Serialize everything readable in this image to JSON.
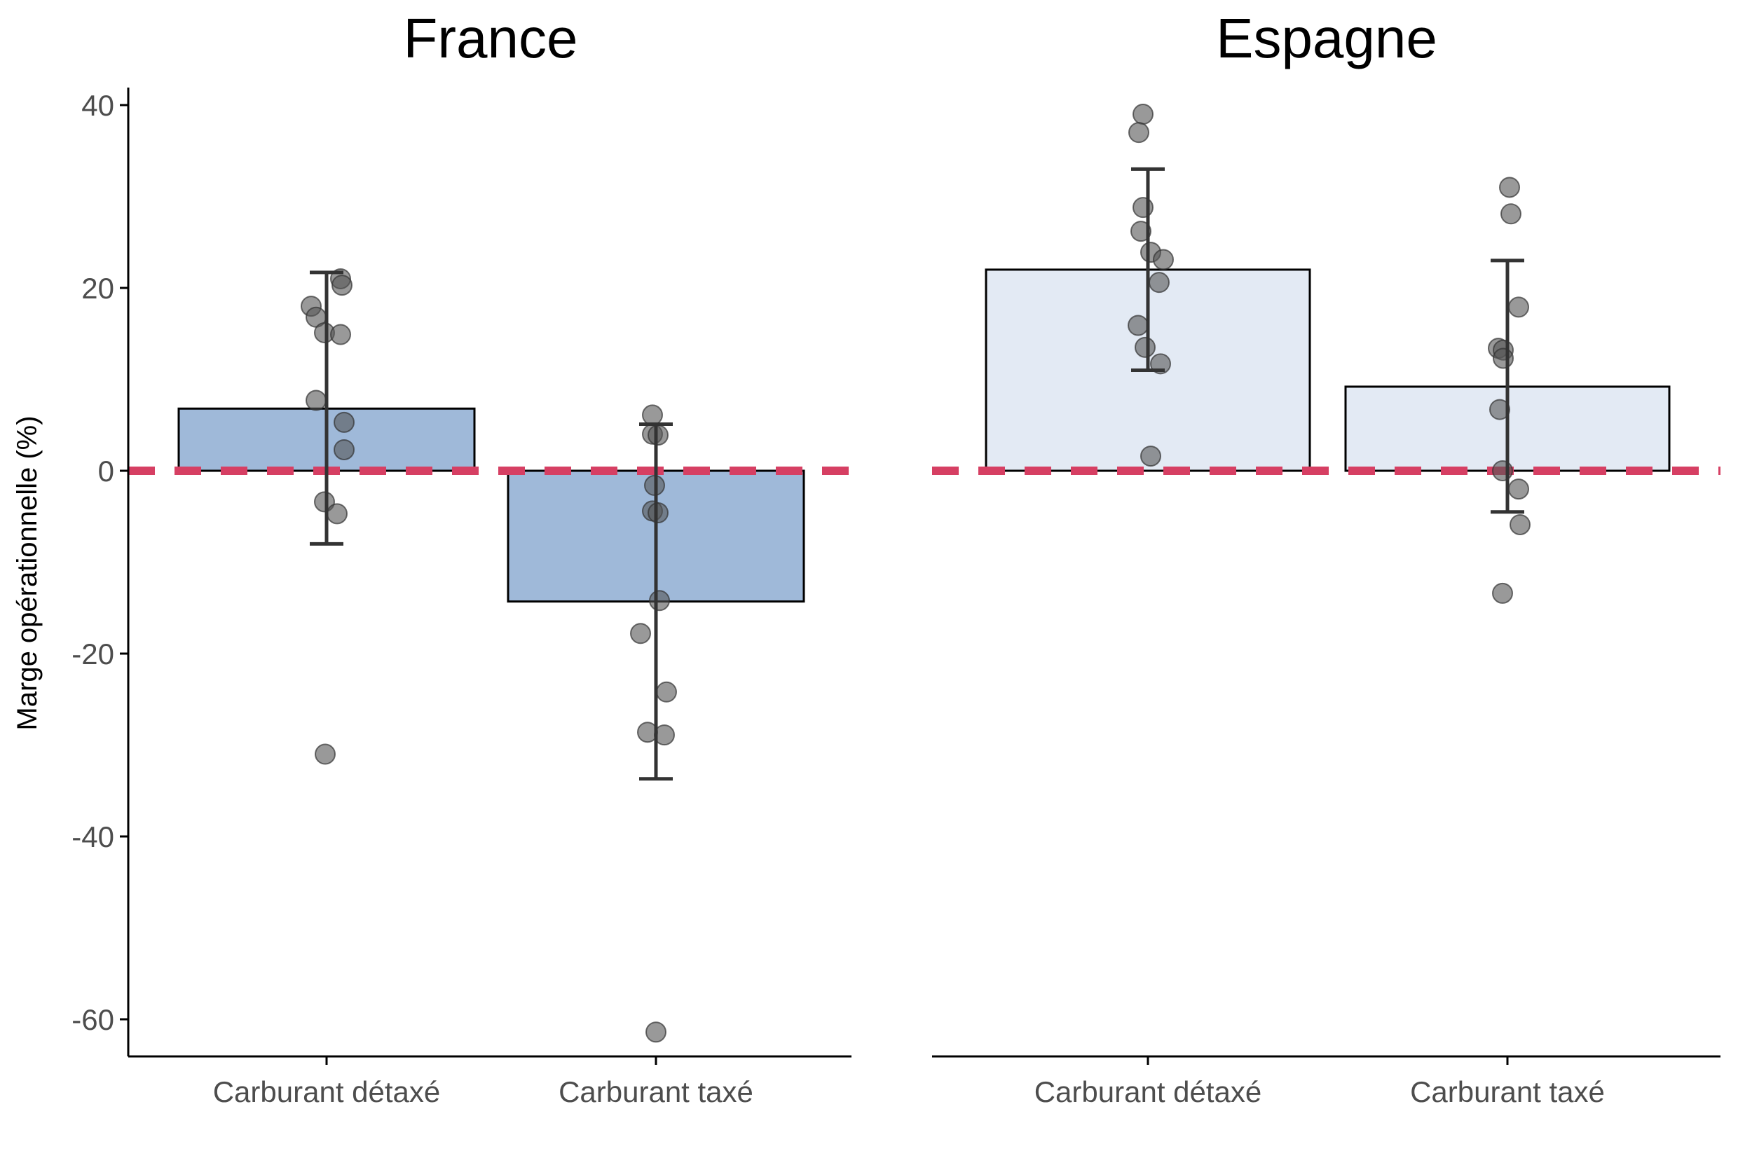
{
  "chart_data": {
    "type": "bar",
    "ylabel": "Marge opérationnelle (%)",
    "ylim": [
      -64,
      42
    ],
    "yticks": [
      40,
      20,
      0,
      -20,
      -40,
      -60
    ],
    "reference_line": {
      "y": 0,
      "style": "dashed",
      "color": "#d63f63"
    },
    "panels": [
      {
        "title": "France",
        "categories": [
          "Carburant détaxé",
          "Carburant taxé"
        ],
        "bar_color": "#9fb9d9",
        "values": [
          6.8,
          -14.3
        ],
        "error_bars": [
          [
            -8,
            21.7
          ],
          [
            -33.7,
            5.1
          ]
        ],
        "points": [
          [
            21,
            20.3,
            18,
            16.8,
            15.1,
            14.9,
            7.7,
            5.3,
            2.3,
            -3.4,
            -4.7,
            -31
          ],
          [
            6.1,
            4,
            3.9,
            -1.6,
            -4.4,
            -4.6,
            -14.2,
            -17.8,
            -24.2,
            -28.6,
            -28.9,
            -61.4
          ]
        ]
      },
      {
        "title": "Espagne",
        "categories": [
          "Carburant détaxé",
          "Carburant taxé"
        ],
        "bar_color": "#e3eaf4",
        "values": [
          22,
          9.2
        ],
        "error_bars": [
          [
            11,
            33
          ],
          [
            -4.5,
            23
          ]
        ],
        "points": [
          [
            39,
            37,
            28.8,
            26.2,
            23.9,
            23.1,
            20.6,
            15.9,
            13.5,
            11.7,
            1.6
          ],
          [
            31,
            28.1,
            17.9,
            13.4,
            13.2,
            12.3,
            6.7,
            0,
            -2,
            -5.9,
            -13.4
          ]
        ]
      }
    ]
  },
  "colors": {
    "bar_outline": "#000000",
    "point_fill": "#555555",
    "error_bar": "#333333",
    "axis": "#000000",
    "tick_text": "#4d4d4d"
  }
}
